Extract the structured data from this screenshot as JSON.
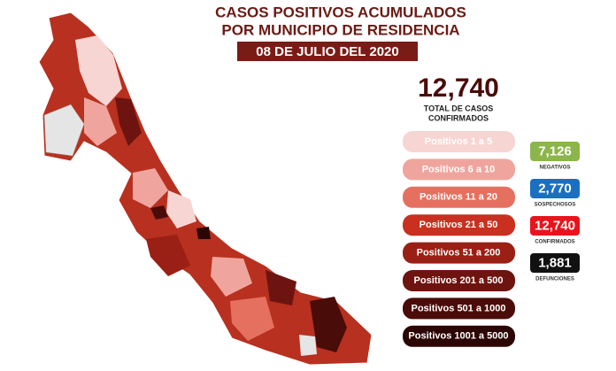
{
  "header": {
    "title_lines": [
      "CASOS POSITIVOS ACUMULADOS",
      "POR MUNICIPIO DE RESIDENCIA"
    ],
    "date": "08 DE JULIO DEL 2020"
  },
  "total": {
    "value": "12,740",
    "label_lines": [
      "TOTAL DE CASOS",
      "CONFIRMADOS"
    ]
  },
  "legend": [
    {
      "label": "Positivos 1 a 5",
      "color": "#f7d5d2"
    },
    {
      "label": "Positivos 6 a 10",
      "color": "#efa59d"
    },
    {
      "label": "Positivos 11 a 20",
      "color": "#e5705f"
    },
    {
      "label": "Positivos 21 a 50",
      "color": "#c9301f"
    },
    {
      "label": "Positivos 51 a 200",
      "color": "#9a1f14"
    },
    {
      "label": "Positivos 201 a 500",
      "color": "#6e1410"
    },
    {
      "label": "Positivos 501 a 1000",
      "color": "#4a0c09"
    },
    {
      "label": "Positivos 1001 a 5000",
      "color": "#2c0605"
    }
  ],
  "stats": [
    {
      "value": "7,126",
      "label": "NEGATIVOS",
      "color": "#8cb54b"
    },
    {
      "value": "2,770",
      "label": "SOSPECHOSOS",
      "color": "#1b6fc0"
    },
    {
      "value": "12,740",
      "label": "CONFIRMADOS",
      "color": "#e8141c"
    },
    {
      "value": "1,881",
      "label": "DEFUNCIONES",
      "color": "#111111"
    }
  ]
}
